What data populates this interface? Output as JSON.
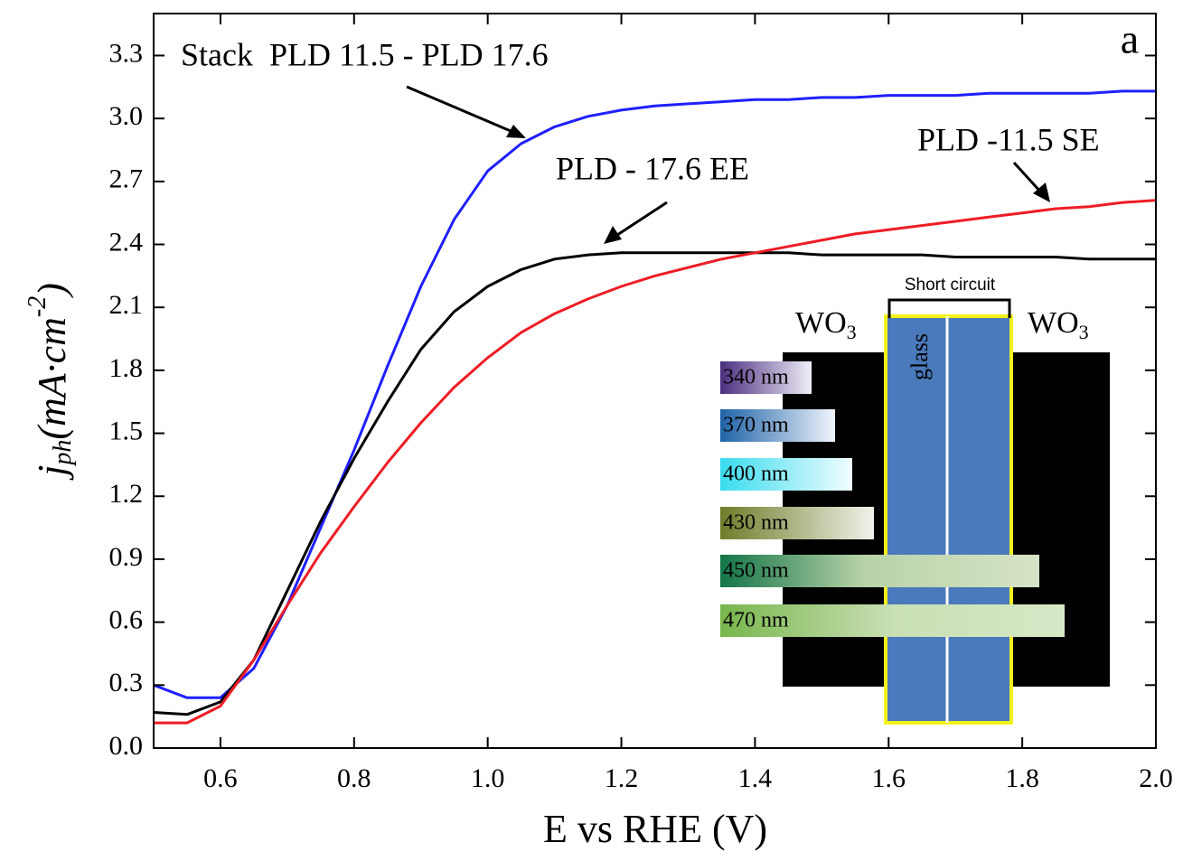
{
  "chart_data": {
    "type": "line",
    "x_label": "E vs RHE (V)",
    "y_label": [
      "j",
      "ph",
      "(mA·cm",
      "-2",
      ")"
    ],
    "panel_label": "a",
    "x": [
      0.5,
      0.55,
      0.6,
      0.65,
      0.7,
      0.75,
      0.8,
      0.85,
      0.9,
      0.95,
      1.0,
      1.05,
      1.1,
      1.15,
      1.2,
      1.25,
      1.3,
      1.35,
      1.4,
      1.45,
      1.5,
      1.55,
      1.6,
      1.65,
      1.7,
      1.75,
      1.8,
      1.85,
      1.9,
      1.95,
      2.0
    ],
    "series": [
      {
        "name": "Stack  PLD 11.5 - PLD 17.6",
        "color": "#1f1fff",
        "values": [
          0.3,
          0.24,
          0.24,
          0.38,
          0.68,
          1.05,
          1.42,
          1.82,
          2.2,
          2.52,
          2.75,
          2.88,
          2.96,
          3.01,
          3.04,
          3.06,
          3.07,
          3.08,
          3.09,
          3.09,
          3.1,
          3.1,
          3.11,
          3.11,
          3.11,
          3.12,
          3.12,
          3.12,
          3.12,
          3.13,
          3.13
        ]
      },
      {
        "name": "PLD - 17.6 EE",
        "color": "#000000",
        "values": [
          0.17,
          0.16,
          0.22,
          0.42,
          0.75,
          1.08,
          1.38,
          1.65,
          1.9,
          2.08,
          2.2,
          2.28,
          2.33,
          2.35,
          2.36,
          2.36,
          2.36,
          2.36,
          2.36,
          2.36,
          2.35,
          2.35,
          2.35,
          2.35,
          2.34,
          2.34,
          2.34,
          2.34,
          2.33,
          2.33,
          2.33
        ]
      },
      {
        "name": "PLD -11.5 SE",
        "color": "#ee1c25",
        "values": [
          0.12,
          0.12,
          0.2,
          0.42,
          0.68,
          0.93,
          1.15,
          1.36,
          1.55,
          1.72,
          1.86,
          1.98,
          2.07,
          2.14,
          2.2,
          2.25,
          2.29,
          2.33,
          2.36,
          2.39,
          2.42,
          2.45,
          2.47,
          2.49,
          2.51,
          2.53,
          2.55,
          2.57,
          2.58,
          2.6,
          2.61
        ]
      }
    ],
    "xlim": [
      0.5,
      2.0
    ],
    "xticks": [
      0.6,
      0.8,
      {
        "value": 1,
        "label": "1.0"
      },
      1.2,
      1.4,
      1.6,
      1.8,
      {
        "value": 2,
        "label": "2.0"
      }
    ],
    "ylim": [
      0,
      3.5
    ],
    "yticks": [
      {
        "value": 0,
        "label": "0.0"
      },
      0.3,
      0.6,
      0.9,
      1.2,
      1.5,
      1.8,
      2.1,
      2.4,
      2.7,
      {
        "value": 3,
        "label": "3.0"
      },
      3.3
    ],
    "grid": false,
    "inset": {
      "short_circuit": "Short circuit",
      "left_layer": [
        "WO",
        "3"
      ],
      "right_layer": [
        "WO",
        "3"
      ],
      "substrate": "glass",
      "wavelengths": [
        "340 nm",
        "370 nm",
        "400 nm",
        "430 nm",
        "450 nm",
        "470 nm"
      ]
    }
  }
}
